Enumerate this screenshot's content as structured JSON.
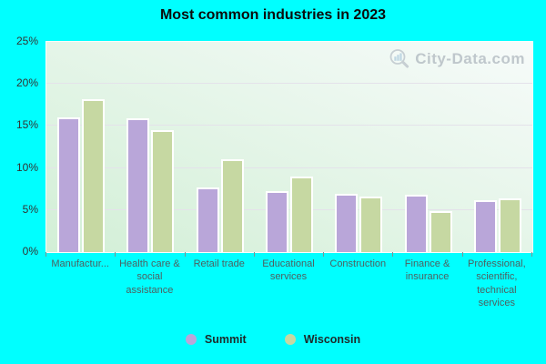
{
  "title": "Most common industries in 2023",
  "watermark": {
    "text": "City-Data.com"
  },
  "colors": {
    "background": "#00ffff",
    "plot_gradient_start": "#d2efd6",
    "plot_gradient_end": "#f7fbfa",
    "gridline": "#e4e2ea",
    "bar_border": "#ffffff",
    "summit": "#b9a6d9",
    "wisconsin": "#c6d8a2",
    "watermark_text": "#a4adb6"
  },
  "chart_data": {
    "type": "bar",
    "title": "Most common industries in 2023",
    "categories": [
      "Manufactur...",
      "Health care & social assistance",
      "Retail trade",
      "Educational services",
      "Construction",
      "Finance & insurance",
      "Professional, scientific, technical services"
    ],
    "series": [
      {
        "name": "Summit",
        "color": "#b9a6d9",
        "values": [
          16.0,
          15.9,
          7.7,
          7.3,
          6.9,
          6.8,
          6.2
        ]
      },
      {
        "name": "Wisconsin",
        "color": "#c6d8a2",
        "values": [
          18.2,
          14.5,
          11.0,
          9.0,
          6.6,
          4.9,
          6.4
        ]
      }
    ],
    "ylabel": "",
    "xlabel": "",
    "ylim": [
      0,
      25
    ],
    "y_ticks": [
      {
        "value": 0,
        "label": "0%"
      },
      {
        "value": 5,
        "label": "5%"
      },
      {
        "value": 10,
        "label": "10%"
      },
      {
        "value": 15,
        "label": "15%"
      },
      {
        "value": 20,
        "label": "20%"
      },
      {
        "value": 25,
        "label": "25%"
      }
    ],
    "gridline_values": [
      5,
      10,
      15,
      20
    ],
    "grid": true,
    "legend_position": "bottom"
  },
  "legend": {
    "items": [
      {
        "label": "Summit",
        "color": "#b9a6d9"
      },
      {
        "label": "Wisconsin",
        "color": "#c6d8a2"
      }
    ]
  }
}
